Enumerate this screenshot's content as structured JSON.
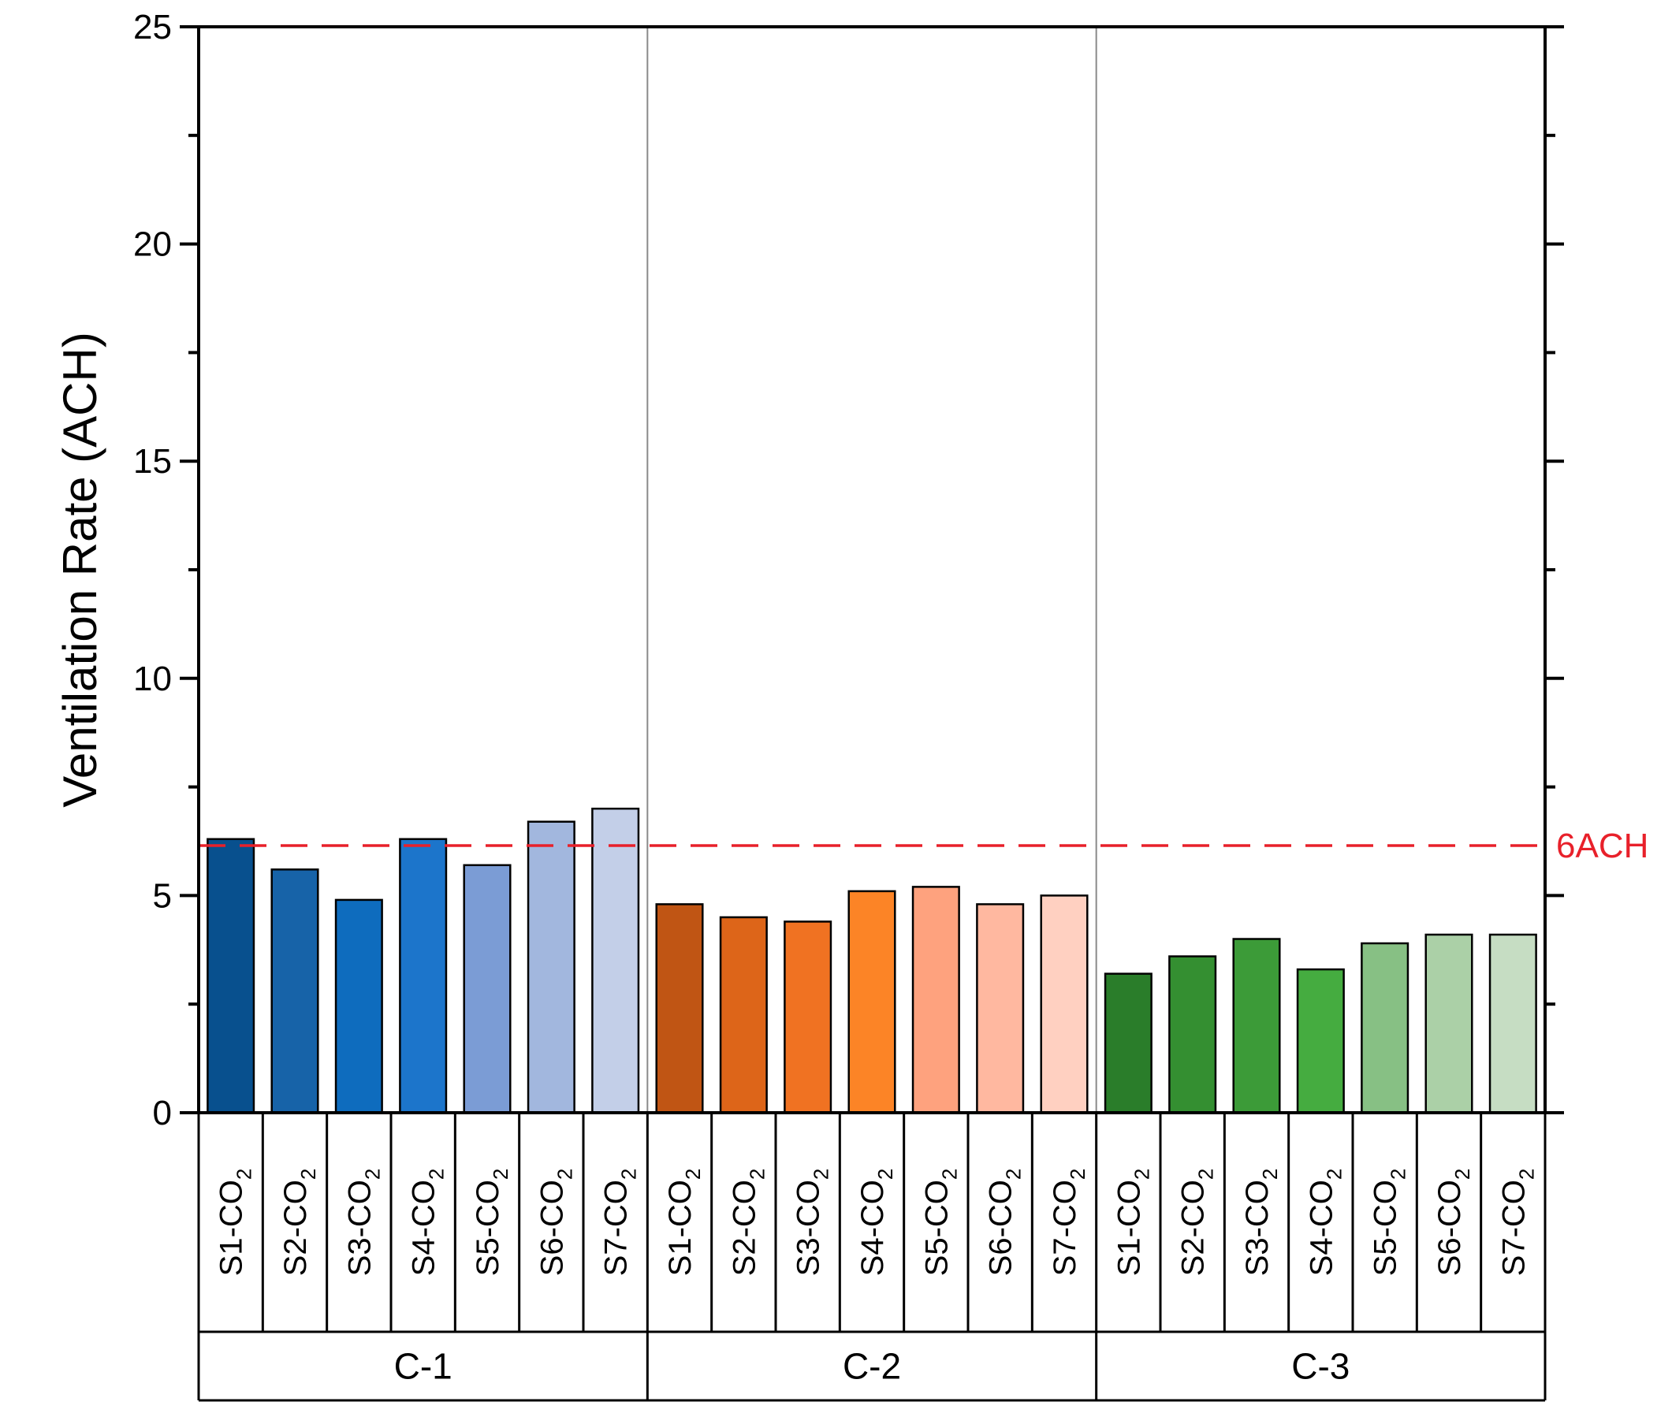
{
  "chart_data": {
    "type": "bar",
    "ylabel": "Ventilation Rate (ACH)",
    "ylim": [
      0,
      25
    ],
    "yticks": [
      0,
      5,
      10,
      15,
      20,
      25
    ],
    "grid": false,
    "reference_line": {
      "value": 6.15,
      "label": "6ACH",
      "color": "#e8202a",
      "style": "dashed"
    },
    "groups": [
      {
        "name": "C-1",
        "categories": [
          {
            "main": "S1-CO",
            "sub": "2"
          },
          {
            "main": "S2-CO",
            "sub": "2"
          },
          {
            "main": "S3-CO",
            "sub": "2"
          },
          {
            "main": "S4-CO",
            "sub": "2"
          },
          {
            "main": "S5-CO",
            "sub": "2"
          },
          {
            "main": "S6-CO",
            "sub": "2"
          },
          {
            "main": "S7-CO",
            "sub": "2"
          }
        ],
        "values": [
          6.3,
          5.6,
          4.9,
          6.3,
          5.7,
          6.7,
          7.0
        ],
        "colors": [
          "#08508e",
          "#1763a8",
          "#0e6cbe",
          "#1c75cb",
          "#7b9cd5",
          "#a2b7de",
          "#c3cfe8"
        ]
      },
      {
        "name": "C-2",
        "categories": [
          {
            "main": "S1-CO",
            "sub": "2"
          },
          {
            "main": "S2-CO",
            "sub": "2"
          },
          {
            "main": "S3-CO",
            "sub": "2"
          },
          {
            "main": "S4-CO",
            "sub": "2"
          },
          {
            "main": "S5-CO",
            "sub": "2"
          },
          {
            "main": "S6-CO",
            "sub": "2"
          },
          {
            "main": "S7-CO",
            "sub": "2"
          }
        ],
        "values": [
          4.8,
          4.5,
          4.4,
          5.1,
          5.2,
          4.8,
          5.0
        ],
        "colors": [
          "#c05514",
          "#dd6519",
          "#f07222",
          "#fc8426",
          "#fea27e",
          "#ffb8a0",
          "#ffd0c1"
        ]
      },
      {
        "name": "C-3",
        "categories": [
          {
            "main": "S1-CO",
            "sub": "2"
          },
          {
            "main": "S2-CO",
            "sub": "2"
          },
          {
            "main": "S3-CO",
            "sub": "2"
          },
          {
            "main": "S4-CO",
            "sub": "2"
          },
          {
            "main": "S5-CO",
            "sub": "2"
          },
          {
            "main": "S6-CO",
            "sub": "2"
          },
          {
            "main": "S7-CO",
            "sub": "2"
          }
        ],
        "values": [
          3.2,
          3.6,
          4.0,
          3.3,
          3.9,
          4.1,
          4.1
        ],
        "colors": [
          "#2a7d2a",
          "#348f31",
          "#3c9b38",
          "#45ac40",
          "#87c084",
          "#abd0a7",
          "#c6ddc3"
        ]
      }
    ]
  }
}
